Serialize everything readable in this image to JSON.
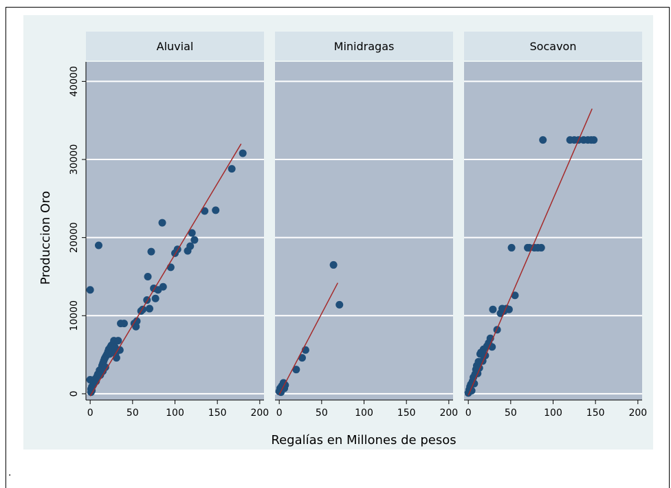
{
  "chart_data": {
    "type": "scatter",
    "ylabel": "Produccion Oro",
    "xlabel": "Regalías en Millones de pesos",
    "xlim": [
      -5,
      205
    ],
    "ylim": [
      -800,
      42500
    ],
    "xticks": [
      0,
      50,
      100,
      150,
      200
    ],
    "yticks": [
      0,
      10000,
      20000,
      30000,
      40000
    ],
    "grid": "horizontal",
    "colors": {
      "outer_bg": "#eaf2f3",
      "plot_bg": "#b0bccc",
      "header_bg": "#d7e3ea",
      "marker": "#1f4e79",
      "fit_line": "#a52a2a",
      "grid": "#ffffff"
    },
    "panels": [
      {
        "title": "Aluvial",
        "points": [
          [
            0,
            13300
          ],
          [
            10,
            19000
          ],
          [
            0,
            1800
          ],
          [
            1,
            200
          ],
          [
            1,
            600
          ],
          [
            2,
            400
          ],
          [
            2,
            900
          ],
          [
            3,
            1000
          ],
          [
            4,
            1200
          ],
          [
            5,
            1500
          ],
          [
            6,
            1900
          ],
          [
            7,
            1600
          ],
          [
            8,
            2200
          ],
          [
            9,
            2500
          ],
          [
            10,
            2600
          ],
          [
            11,
            3000
          ],
          [
            12,
            2400
          ],
          [
            13,
            3200
          ],
          [
            14,
            3600
          ],
          [
            15,
            3900
          ],
          [
            15,
            2900
          ],
          [
            16,
            4200
          ],
          [
            17,
            4500
          ],
          [
            18,
            4700
          ],
          [
            18,
            3400
          ],
          [
            19,
            4900
          ],
          [
            20,
            5100
          ],
          [
            21,
            5400
          ],
          [
            22,
            5700
          ],
          [
            23,
            5100
          ],
          [
            24,
            6000
          ],
          [
            25,
            6200
          ],
          [
            26,
            5600
          ],
          [
            27,
            6400
          ],
          [
            28,
            6800
          ],
          [
            29,
            6000
          ],
          [
            30,
            5200
          ],
          [
            31,
            4600
          ],
          [
            33,
            6800
          ],
          [
            35,
            5600
          ],
          [
            36,
            9000
          ],
          [
            40,
            9000
          ],
          [
            52,
            9000
          ],
          [
            54,
            8600
          ],
          [
            55,
            9300
          ],
          [
            60,
            10600
          ],
          [
            62,
            10800
          ],
          [
            67,
            12000
          ],
          [
            68,
            15000
          ],
          [
            70,
            10900
          ],
          [
            72,
            18200
          ],
          [
            75,
            13500
          ],
          [
            77,
            12200
          ],
          [
            80,
            13300
          ],
          [
            85,
            21900
          ],
          [
            86,
            13700
          ],
          [
            95,
            16200
          ],
          [
            100,
            18000
          ],
          [
            103,
            18500
          ],
          [
            115,
            18300
          ],
          [
            118,
            18900
          ],
          [
            120,
            20600
          ],
          [
            123,
            19700
          ],
          [
            135,
            23400
          ],
          [
            148,
            23500
          ],
          [
            167,
            28800
          ],
          [
            180,
            30800
          ]
        ],
        "fit": [
          [
            0,
            -300
          ],
          [
            178,
            32000
          ]
        ]
      },
      {
        "title": "Minidragas",
        "points": [
          [
            0,
            300
          ],
          [
            1,
            700
          ],
          [
            2,
            200
          ],
          [
            3,
            1000
          ],
          [
            5,
            1400
          ],
          [
            6,
            700
          ],
          [
            7,
            1100
          ],
          [
            20,
            3100
          ],
          [
            27,
            4600
          ],
          [
            31,
            5600
          ],
          [
            64,
            16500
          ],
          [
            71,
            11400
          ]
        ],
        "fit": [
          [
            0,
            -100
          ],
          [
            69,
            14200
          ]
        ]
      },
      {
        "title": "Socavon",
        "points": [
          [
            0,
            100
          ],
          [
            1,
            500
          ],
          [
            2,
            900
          ],
          [
            3,
            1200
          ],
          [
            4,
            400
          ],
          [
            5,
            1600
          ],
          [
            6,
            2100
          ],
          [
            7,
            1300
          ],
          [
            8,
            2500
          ],
          [
            9,
            3100
          ],
          [
            10,
            3600
          ],
          [
            11,
            2600
          ],
          [
            12,
            4100
          ],
          [
            13,
            3300
          ],
          [
            14,
            5100
          ],
          [
            15,
            5300
          ],
          [
            17,
            4200
          ],
          [
            18,
            5700
          ],
          [
            20,
            4900
          ],
          [
            22,
            6100
          ],
          [
            24,
            6500
          ],
          [
            26,
            7100
          ],
          [
            28,
            6000
          ],
          [
            29,
            10800
          ],
          [
            34,
            8200
          ],
          [
            38,
            10300
          ],
          [
            40,
            10900
          ],
          [
            42,
            10600
          ],
          [
            45,
            10900
          ],
          [
            48,
            10800
          ],
          [
            51,
            18700
          ],
          [
            55,
            12600
          ],
          [
            70,
            18700
          ],
          [
            72,
            18700
          ],
          [
            78,
            18700
          ],
          [
            82,
            18700
          ],
          [
            86,
            18700
          ],
          [
            88,
            32500
          ],
          [
            120,
            32500
          ],
          [
            125,
            32500
          ],
          [
            130,
            32500
          ],
          [
            136,
            32500
          ],
          [
            141,
            32500
          ],
          [
            145,
            32500
          ],
          [
            148,
            32500
          ]
        ],
        "fit": [
          [
            0,
            -200
          ],
          [
            146,
            36500
          ]
        ]
      }
    ]
  },
  "caption": "."
}
